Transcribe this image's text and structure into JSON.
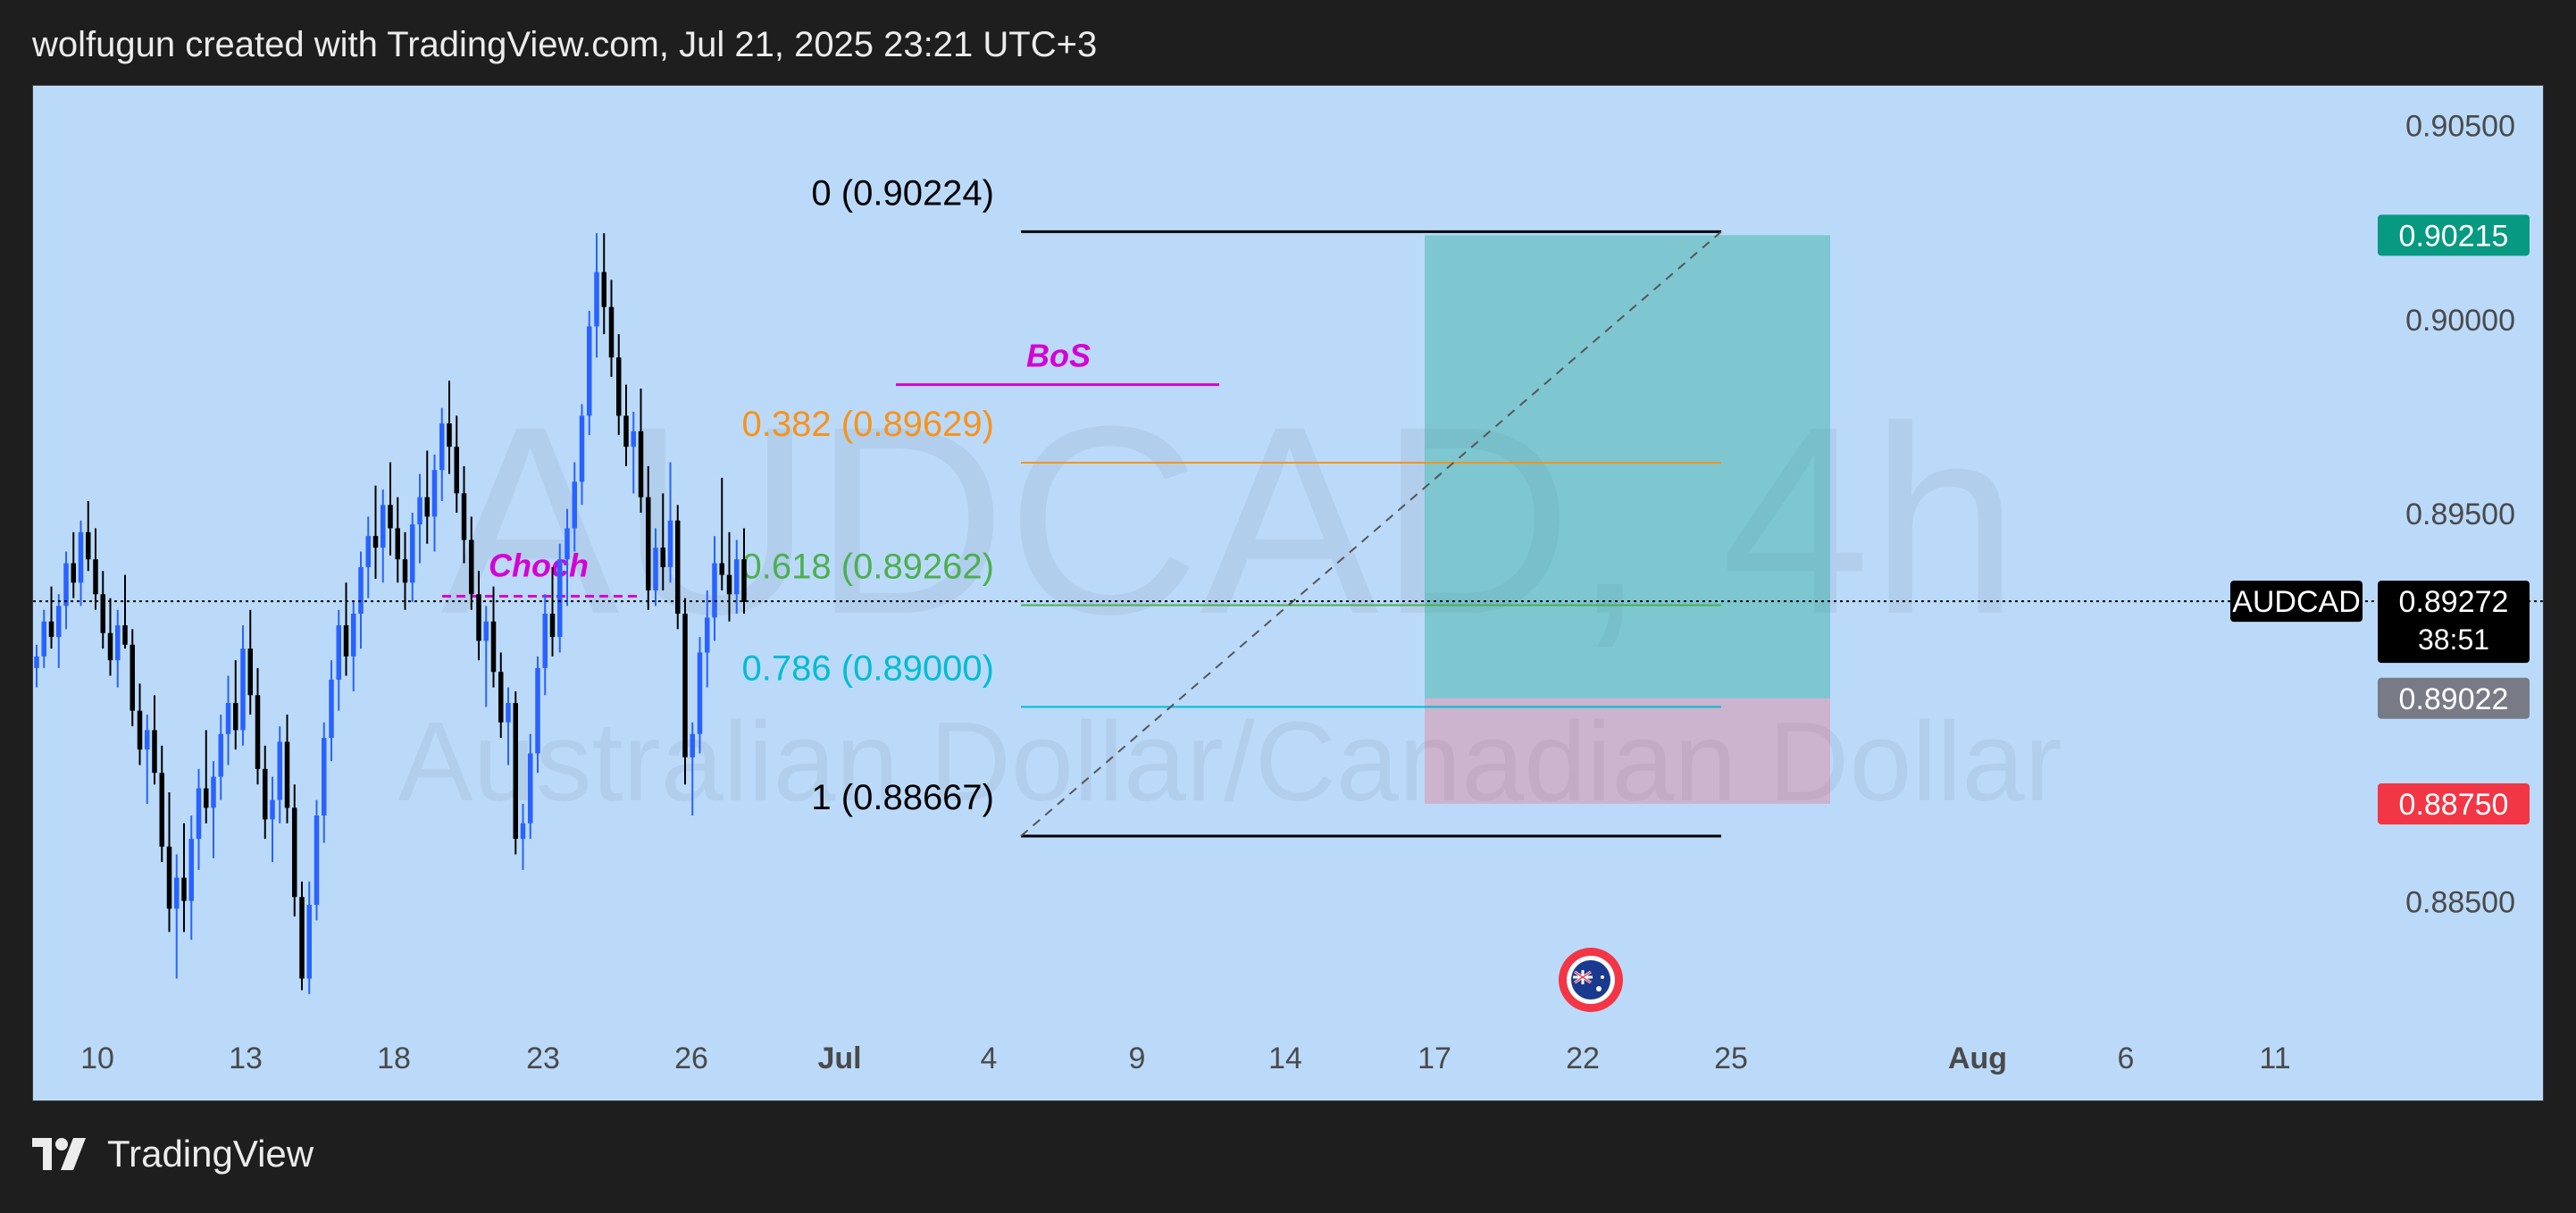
{
  "header": {
    "text": "wolfugun created with TradingView.com, Jul 21, 2025 23:21 UTC+3"
  },
  "footer": {
    "brand": "TradingView",
    "logo_icon": "tradingview-logo-icon"
  },
  "watermark": {
    "symbol": "AUDCAD, 4h",
    "description": "Australian Dollar/Canadian Dollar"
  },
  "chart_data": {
    "type": "candlestick",
    "symbol": "AUDCAD",
    "interval": "4h",
    "ylim": [
      0.882,
      0.906
    ],
    "y_ticks": [
      "0.90500",
      "0.90000",
      "0.89500",
      "0.88500"
    ],
    "x_ticks": [
      "10",
      "13",
      "18",
      "23",
      "26",
      "Jul",
      "4",
      "9",
      "14",
      "17",
      "22",
      "25",
      "Aug",
      "6",
      "11"
    ],
    "price_line": {
      "value": 0.89272,
      "label": "AUDCAD",
      "price": "0.89272",
      "countdown": "38:51"
    },
    "axis_labels": [
      {
        "price": "0.90215",
        "value": 0.90215,
        "color": "#089981"
      },
      {
        "price": "0.89022",
        "value": 0.89022,
        "color": "#787b86"
      },
      {
        "price": "0.88750",
        "value": 0.8875,
        "color": "#f23645"
      }
    ],
    "fib_levels": [
      {
        "label": "0 (0.90224)",
        "value": 0.90224,
        "color": "#000000"
      },
      {
        "label": "0.382 (0.89629)",
        "value": 0.89629,
        "color": "#f7931a"
      },
      {
        "label": "0.618 (0.89262)",
        "value": 0.89262,
        "color": "#4caf50"
      },
      {
        "label": "0.786 (0.89000)",
        "value": 0.89,
        "color": "#00bcd4"
      },
      {
        "label": "1 (0.88667)",
        "value": 0.88667,
        "color": "#000000"
      }
    ],
    "position": {
      "type": "long",
      "entry": 0.89022,
      "target": 0.90215,
      "stop": 0.8875
    },
    "annotations": [
      {
        "text": "BoS",
        "value": 0.8983,
        "color": "#d500d5"
      },
      {
        "text": "Choch",
        "value": 0.89285,
        "color": "#d500d5"
      }
    ],
    "candle_colors": {
      "up": "#2962ff",
      "down": "#000000"
    },
    "candles": [
      [
        0.891,
        0.8916,
        0.8905,
        0.8913
      ],
      [
        0.8913,
        0.8925,
        0.891,
        0.8922
      ],
      [
        0.8922,
        0.8931,
        0.8915,
        0.8918
      ],
      [
        0.8918,
        0.8929,
        0.891,
        0.8926
      ],
      [
        0.8926,
        0.894,
        0.892,
        0.8937
      ],
      [
        0.8937,
        0.8945,
        0.8928,
        0.8932
      ],
      [
        0.8932,
        0.8948,
        0.8926,
        0.8945
      ],
      [
        0.8945,
        0.8953,
        0.8935,
        0.8938
      ],
      [
        0.8938,
        0.8946,
        0.8925,
        0.8929
      ],
      [
        0.8929,
        0.8935,
        0.8915,
        0.8919
      ],
      [
        0.8919,
        0.8928,
        0.8908,
        0.8912
      ],
      [
        0.8912,
        0.8925,
        0.8905,
        0.8921
      ],
      [
        0.8921,
        0.8934,
        0.8915,
        0.8916
      ],
      [
        0.8916,
        0.892,
        0.8895,
        0.8899
      ],
      [
        0.8899,
        0.8906,
        0.8885,
        0.8889
      ],
      [
        0.8889,
        0.8898,
        0.8875,
        0.8894
      ],
      [
        0.8894,
        0.8903,
        0.888,
        0.8883
      ],
      [
        0.8883,
        0.889,
        0.886,
        0.8864
      ],
      [
        0.8864,
        0.8878,
        0.8842,
        0.8848
      ],
      [
        0.8848,
        0.8862,
        0.883,
        0.8856
      ],
      [
        0.8856,
        0.887,
        0.8842,
        0.885
      ],
      [
        0.885,
        0.8872,
        0.884,
        0.8866
      ],
      [
        0.8866,
        0.8884,
        0.8858,
        0.8879
      ],
      [
        0.8879,
        0.8894,
        0.887,
        0.8874
      ],
      [
        0.8874,
        0.8886,
        0.8861,
        0.8882
      ],
      [
        0.8882,
        0.8898,
        0.8876,
        0.8893
      ],
      [
        0.8893,
        0.8908,
        0.8885,
        0.8901
      ],
      [
        0.8901,
        0.8912,
        0.8889,
        0.8894
      ],
      [
        0.8894,
        0.8921,
        0.889,
        0.8915
      ],
      [
        0.8915,
        0.8925,
        0.8898,
        0.8903
      ],
      [
        0.8903,
        0.891,
        0.888,
        0.8884
      ],
      [
        0.8884,
        0.889,
        0.8866,
        0.8871
      ],
      [
        0.8871,
        0.8882,
        0.886,
        0.8876
      ],
      [
        0.8876,
        0.8895,
        0.887,
        0.8891
      ],
      [
        0.8891,
        0.8898,
        0.887,
        0.8874
      ],
      [
        0.8874,
        0.888,
        0.8846,
        0.8851
      ],
      [
        0.8851,
        0.8855,
        0.8827,
        0.883
      ],
      [
        0.883,
        0.8855,
        0.8826,
        0.8849
      ],
      [
        0.8849,
        0.8876,
        0.8845,
        0.8872
      ],
      [
        0.8872,
        0.8896,
        0.8865,
        0.8892
      ],
      [
        0.8892,
        0.8912,
        0.8886,
        0.8907
      ],
      [
        0.8907,
        0.8925,
        0.8899,
        0.8921
      ],
      [
        0.8921,
        0.8932,
        0.8908,
        0.8913
      ],
      [
        0.8913,
        0.8927,
        0.8904,
        0.8924
      ],
      [
        0.8924,
        0.894,
        0.8915,
        0.8936
      ],
      [
        0.8936,
        0.8949,
        0.8928,
        0.8944
      ],
      [
        0.8944,
        0.8957,
        0.8933,
        0.8941
      ],
      [
        0.8941,
        0.8956,
        0.8932,
        0.8952
      ],
      [
        0.8952,
        0.8963,
        0.8939,
        0.8946
      ],
      [
        0.8946,
        0.8954,
        0.8932,
        0.8938
      ],
      [
        0.8938,
        0.8945,
        0.8925,
        0.8932
      ],
      [
        0.8932,
        0.895,
        0.8927,
        0.8947
      ],
      [
        0.8947,
        0.896,
        0.8937,
        0.8954
      ],
      [
        0.8954,
        0.8966,
        0.8942,
        0.8949
      ],
      [
        0.8949,
        0.8965,
        0.894,
        0.8961
      ],
      [
        0.8961,
        0.8977,
        0.8953,
        0.8973
      ],
      [
        0.8973,
        0.8984,
        0.896,
        0.8967
      ],
      [
        0.8967,
        0.8975,
        0.895,
        0.8955
      ],
      [
        0.8955,
        0.8962,
        0.8937,
        0.8943
      ],
      [
        0.8943,
        0.8949,
        0.8925,
        0.8929
      ],
      [
        0.8929,
        0.8935,
        0.8912,
        0.8917
      ],
      [
        0.8917,
        0.8926,
        0.89,
        0.8922
      ],
      [
        0.8922,
        0.8931,
        0.8905,
        0.8909
      ],
      [
        0.8909,
        0.8914,
        0.8892,
        0.8896
      ],
      [
        0.8896,
        0.8905,
        0.8885,
        0.8901
      ],
      [
        0.8901,
        0.8904,
        0.8862,
        0.8866
      ],
      [
        0.8866,
        0.8875,
        0.8858,
        0.887
      ],
      [
        0.887,
        0.8893,
        0.8866,
        0.8888
      ],
      [
        0.8888,
        0.8913,
        0.8883,
        0.891
      ],
      [
        0.891,
        0.8929,
        0.8903,
        0.8924
      ],
      [
        0.8924,
        0.8936,
        0.8913,
        0.8918
      ],
      [
        0.8918,
        0.8942,
        0.8914,
        0.8938
      ],
      [
        0.8938,
        0.8951,
        0.8926,
        0.8946
      ],
      [
        0.8946,
        0.8963,
        0.894,
        0.8958
      ],
      [
        0.8958,
        0.8978,
        0.8952,
        0.8975
      ],
      [
        0.8975,
        0.9002,
        0.897,
        0.8998
      ],
      [
        0.8998,
        0.9022,
        0.899,
        0.9012
      ],
      [
        0.9012,
        0.9022,
        0.8996,
        0.9003
      ],
      [
        0.9003,
        0.901,
        0.8985,
        0.899
      ],
      [
        0.899,
        0.8996,
        0.897,
        0.8975
      ],
      [
        0.8975,
        0.8983,
        0.8962,
        0.8967
      ],
      [
        0.8967,
        0.8976,
        0.8955,
        0.8971
      ],
      [
        0.8971,
        0.8982,
        0.895,
        0.8954
      ],
      [
        0.8954,
        0.8962,
        0.8925,
        0.893
      ],
      [
        0.893,
        0.8946,
        0.8926,
        0.8941
      ],
      [
        0.8941,
        0.8955,
        0.893,
        0.8936
      ],
      [
        0.8936,
        0.8963,
        0.8932,
        0.8948
      ],
      [
        0.8948,
        0.8952,
        0.892,
        0.8924
      ],
      [
        0.8924,
        0.8928,
        0.888,
        0.8887
      ],
      [
        0.8887,
        0.8896,
        0.8872,
        0.8893
      ],
      [
        0.8893,
        0.8918,
        0.8888,
        0.8914
      ],
      [
        0.8914,
        0.893,
        0.8905,
        0.8923
      ],
      [
        0.8923,
        0.8944,
        0.8917,
        0.8937
      ],
      [
        0.8937,
        0.8959,
        0.893,
        0.8934
      ],
      [
        0.8934,
        0.8945,
        0.8922,
        0.8929
      ],
      [
        0.8929,
        0.8943,
        0.8924,
        0.8938
      ],
      [
        0.8938,
        0.8946,
        0.8924,
        0.8927
      ]
    ]
  }
}
